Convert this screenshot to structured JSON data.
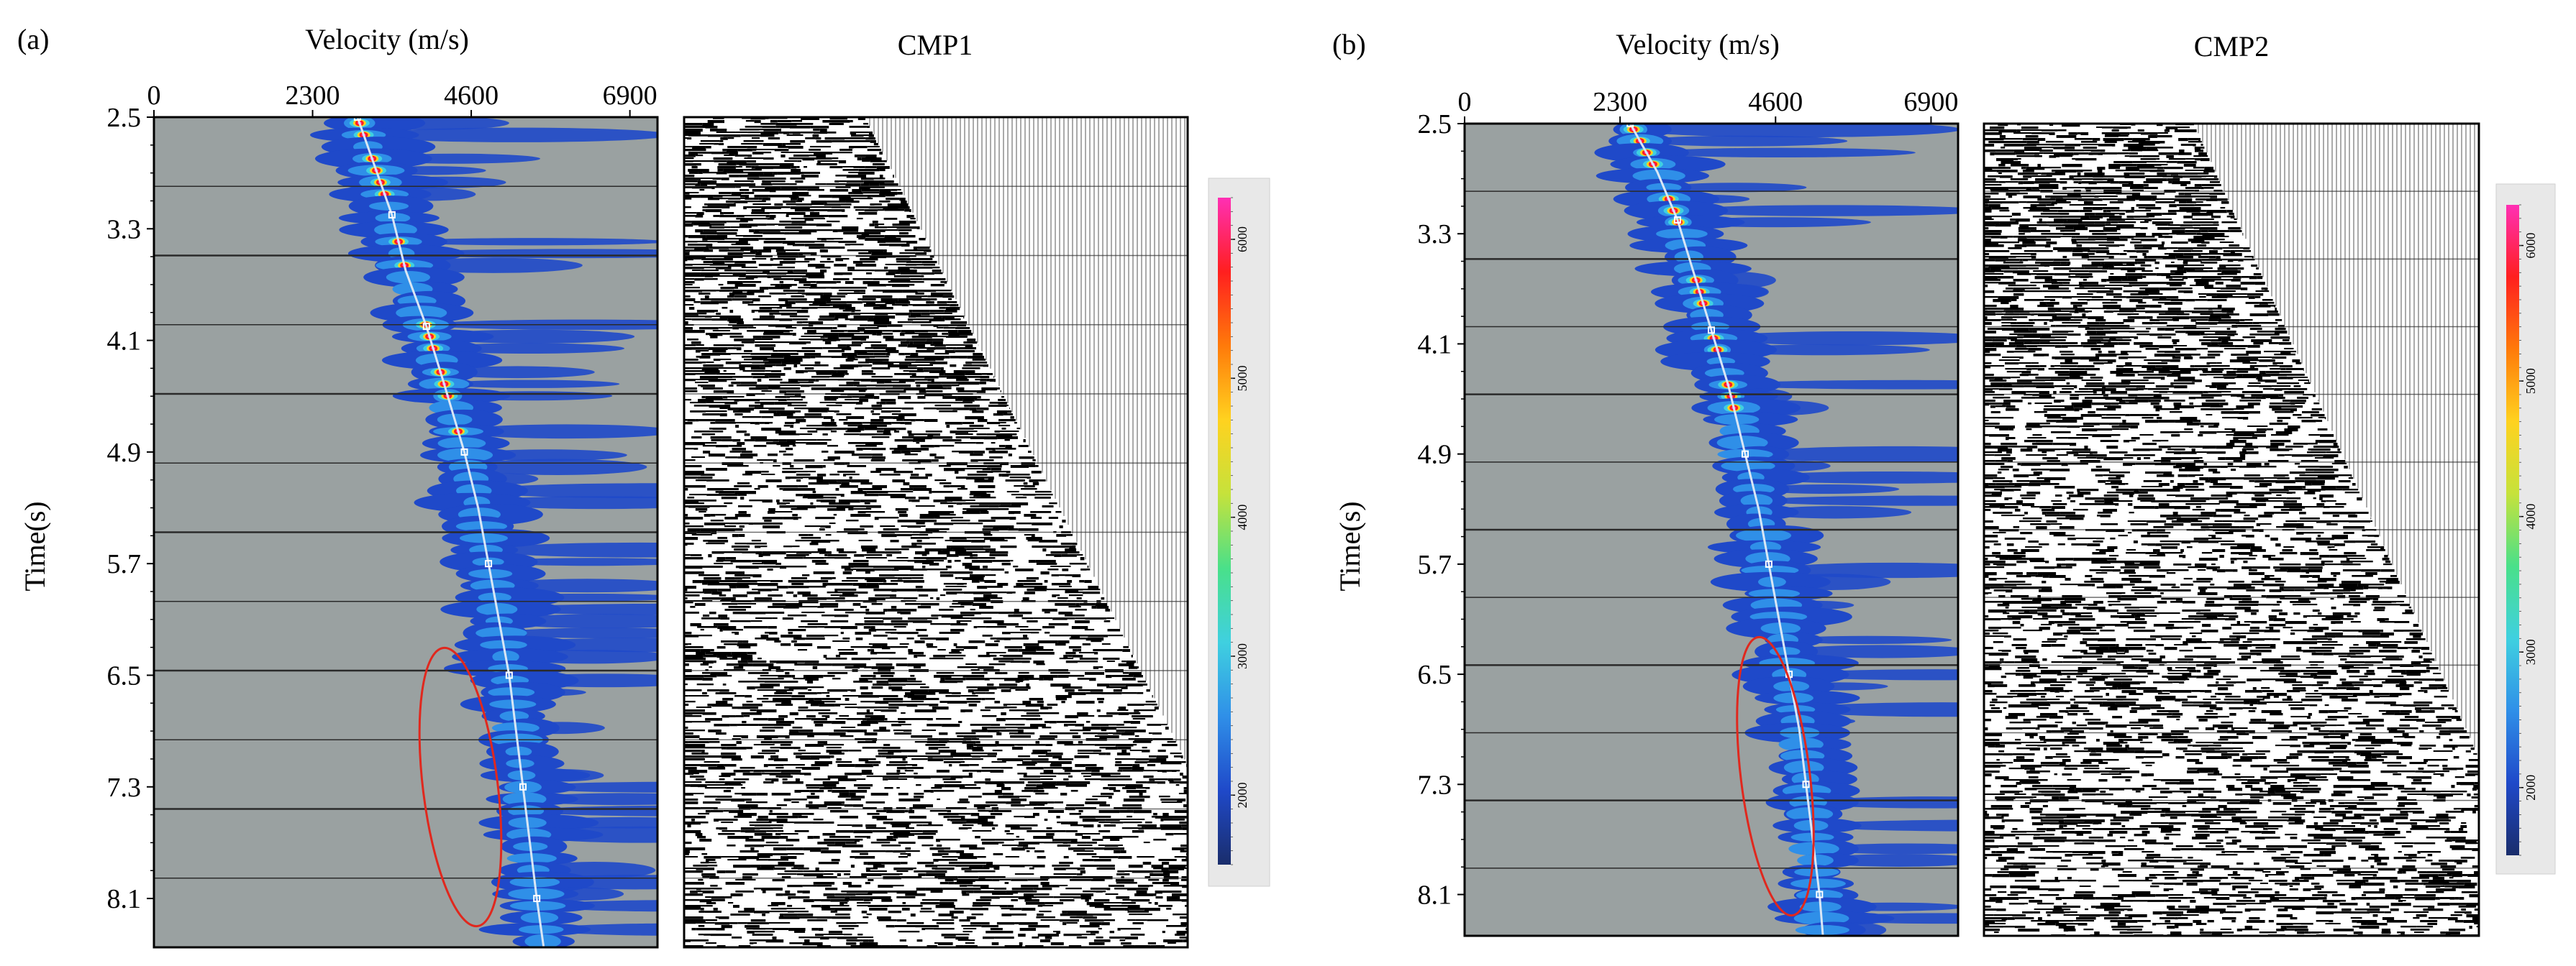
{
  "figure": {
    "panels": [
      {
        "label": "(a)",
        "gather_title": "CMP1"
      },
      {
        "label": "(b)",
        "gather_title": "CMP2"
      }
    ],
    "colormap": [
      "#1a2d6b",
      "#1f49c9",
      "#2f8fe8",
      "#3fd0e0",
      "#49e08a",
      "#c6e23b",
      "#ffd21f",
      "#ff7a0a",
      "#ff1f1f",
      "#ff2fb4"
    ],
    "background_color": "#9aa1a1",
    "pick_line_color": "#d9e6f5",
    "ellipse_color": "#e0281e"
  },
  "chart_data": [
    {
      "type": "heatmap",
      "panel": "(a)",
      "title": "",
      "xlabel": "Velocity (m/s)",
      "ylabel": "Time(s)",
      "xlim": [
        0,
        7300
      ],
      "ylim": [
        2.5,
        8.45
      ],
      "x_ticks": [
        "0",
        "2300",
        "4600",
        "6900"
      ],
      "y_ticks": [
        "2.5",
        "3.3",
        "4.1",
        "4.9",
        "5.7",
        "6.5",
        "7.3",
        "8.1"
      ],
      "picked_velocity": {
        "time": [
          2.5,
          2.85,
          3.2,
          3.6,
          4.0,
          4.4,
          4.9,
          5.3,
          5.7,
          6.1,
          6.5,
          6.9,
          7.3,
          7.7,
          8.1,
          8.45
        ],
        "velocity": [
          2950,
          3200,
          3450,
          3650,
          3950,
          4200,
          4500,
          4700,
          4850,
          5000,
          5150,
          5250,
          5350,
          5450,
          5550,
          5650
        ]
      },
      "colorbar": {
        "ticks": [
          "2000",
          "3000",
          "4000",
          "5000",
          "6000"
        ],
        "range": [
          1500,
          6300
        ]
      }
    },
    {
      "type": "heatmap",
      "panel": "(b)",
      "title": "",
      "xlabel": "Velocity (m/s)",
      "ylabel": "Time(s)",
      "xlim": [
        0,
        7300
      ],
      "ylim": [
        2.5,
        8.4
      ],
      "x_ticks": [
        "0",
        "2300",
        "4600",
        "6900"
      ],
      "y_ticks": [
        "2.5",
        "3.3",
        "4.1",
        "4.9",
        "5.7",
        "6.5",
        "7.3",
        "8.1"
      ],
      "picked_velocity": {
        "time": [
          2.5,
          2.85,
          3.2,
          3.6,
          4.0,
          4.4,
          4.9,
          5.3,
          5.7,
          6.1,
          6.5,
          6.9,
          7.3,
          7.7,
          8.1,
          8.4
        ],
        "velocity": [
          2450,
          2850,
          3150,
          3400,
          3650,
          3900,
          4150,
          4350,
          4500,
          4650,
          4800,
          4950,
          5050,
          5150,
          5250,
          5300
        ]
      },
      "colorbar": {
        "ticks": [
          "2000",
          "3000",
          "4000",
          "5000",
          "6000"
        ],
        "range": [
          1500,
          6300
        ]
      }
    }
  ]
}
